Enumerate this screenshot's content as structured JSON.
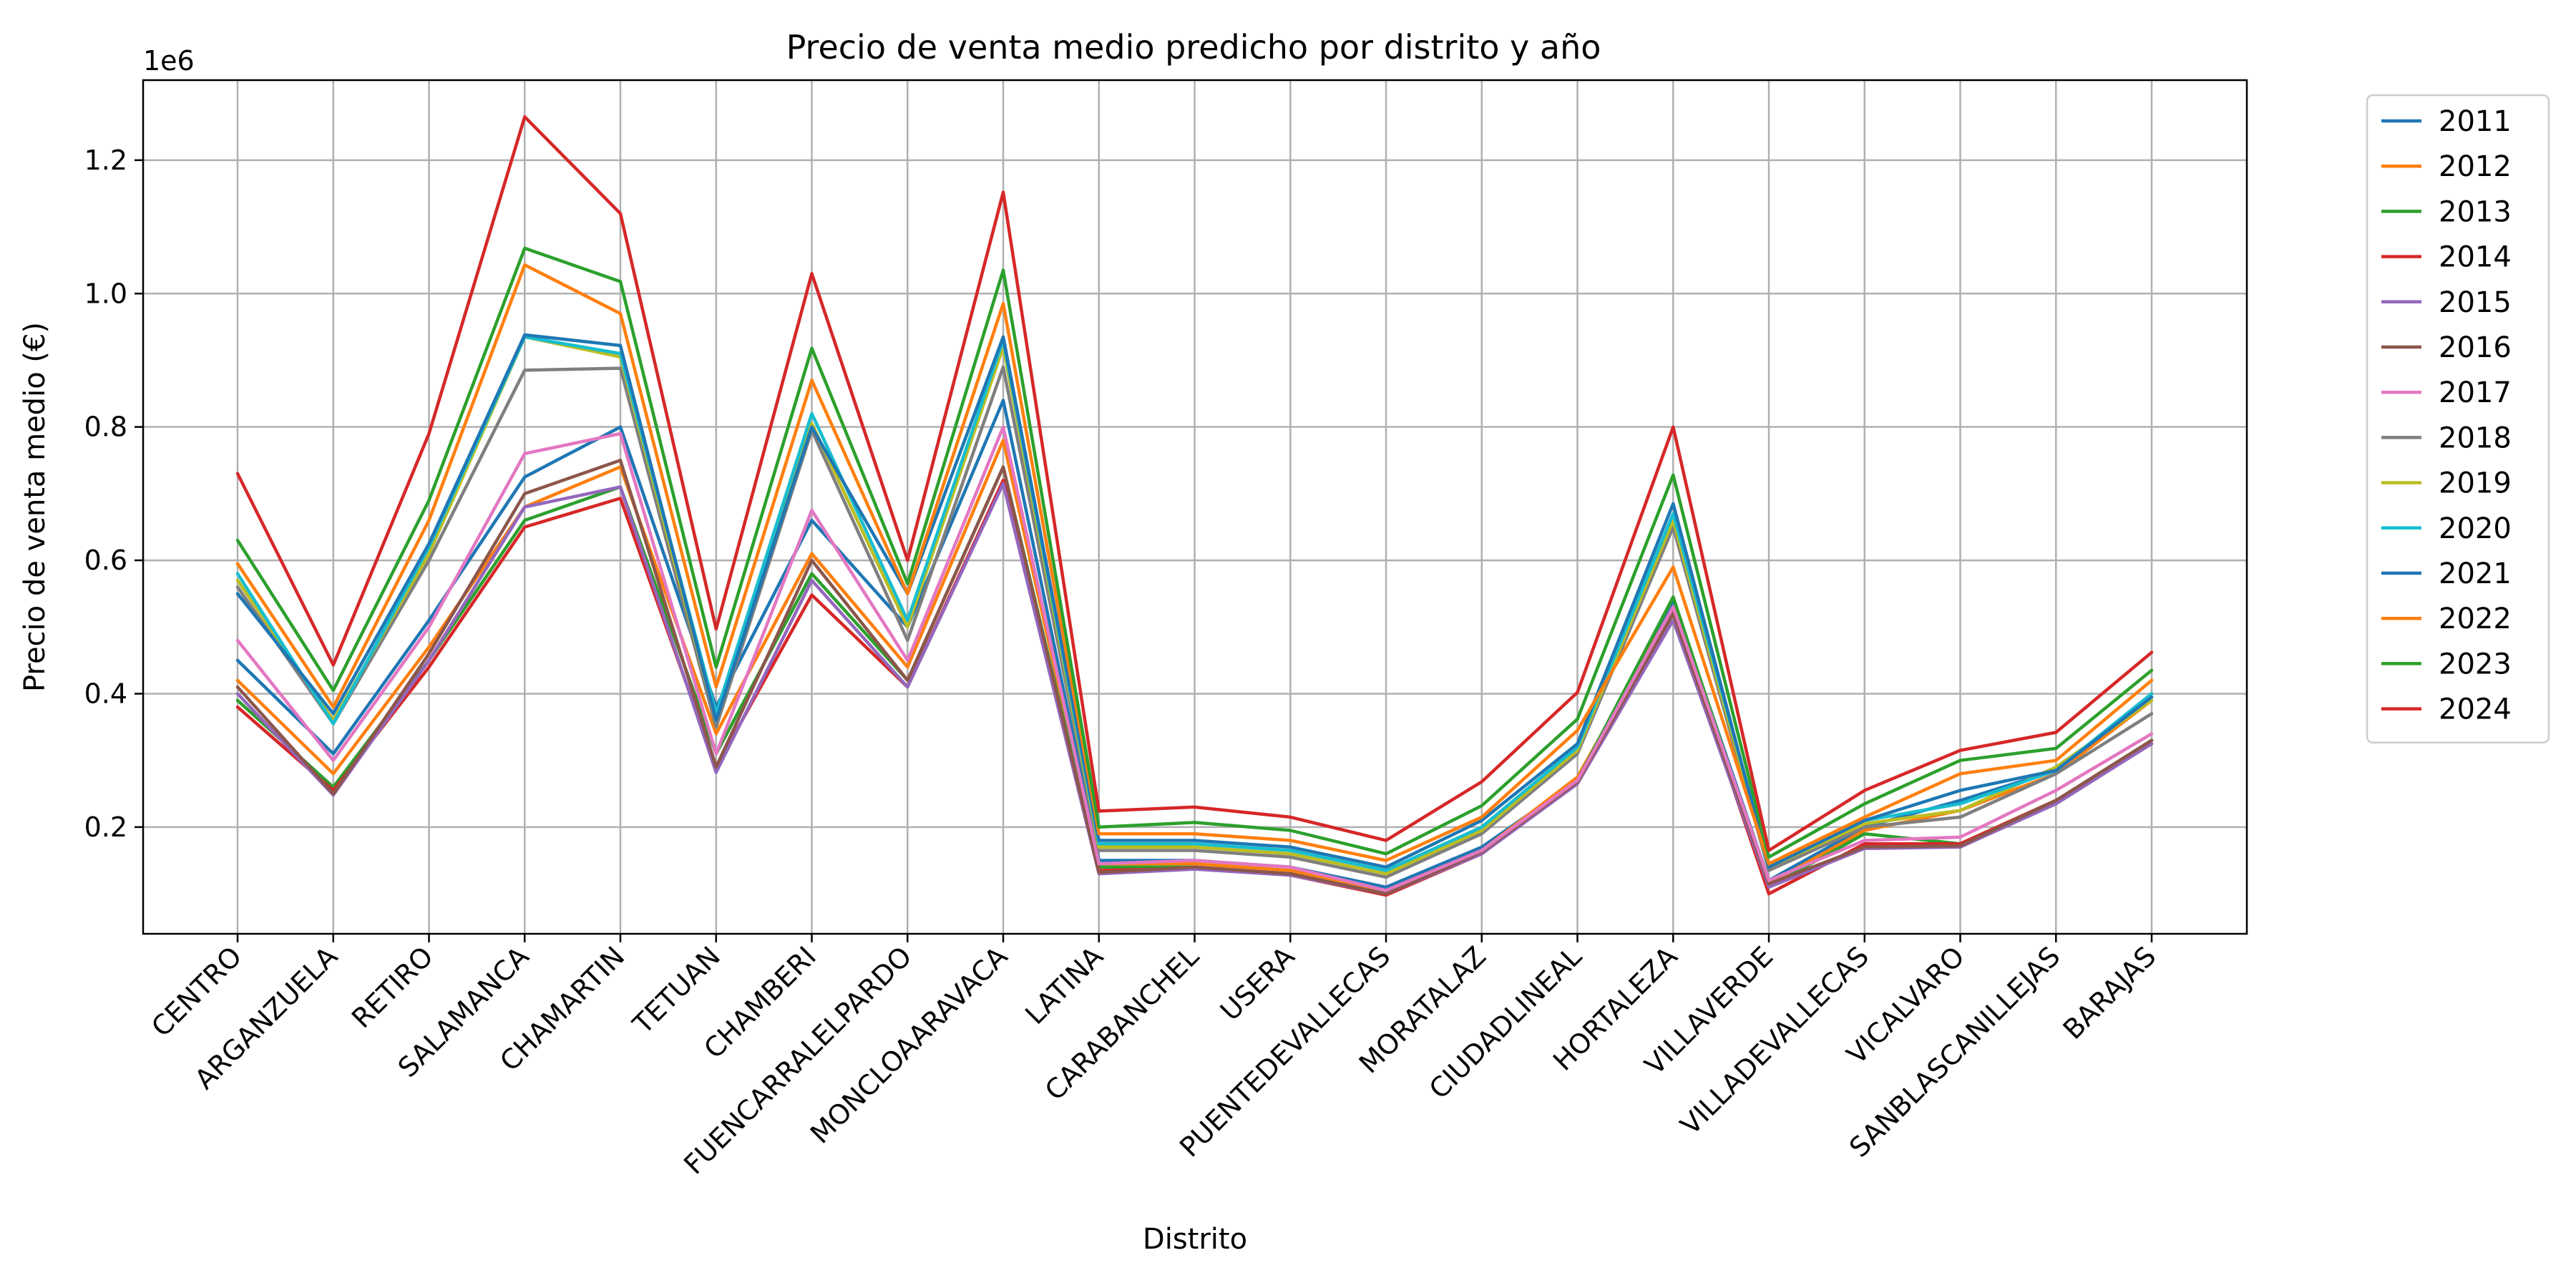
{
  "chart_data": {
    "type": "line",
    "title": "Precio de venta medio predicho por distrito y año",
    "xlabel": "Distrito",
    "ylabel": "Precio de venta medio (€)",
    "y_offset_label": "1e6",
    "y_scale": 1000000,
    "ylim": [
      40000,
      1320000
    ],
    "y_ticks": [
      200000,
      400000,
      600000,
      800000,
      1000000,
      1200000
    ],
    "y_tick_labels": [
      "0.2",
      "0.4",
      "0.6",
      "0.8",
      "1.0",
      "1.2"
    ],
    "grid": true,
    "legend_position": "outside-right",
    "categories": [
      "CENTRO",
      "ARGANZUELA",
      "RETIRO",
      "SALAMANCA",
      "CHAMARTIN",
      "TETUAN",
      "CHAMBERI",
      "FUENCARRALELPARDO",
      "MONCLOAARAVACA",
      "LATINA",
      "CARABANCHEL",
      "USERA",
      "PUENTEDEVALLECAS",
      "MORATALAZ",
      "CIUDADLINEAL",
      "HORTALEZA",
      "VILLAVERDE",
      "VILLADEVALLECAS",
      "VICALVARO",
      "SANBLASCANILLEJAS",
      "BARAJAS"
    ],
    "series": [
      {
        "name": "2011",
        "color": "#1f77b4",
        "values": [
          450000,
          310000,
          510000,
          725000,
          800000,
          380000,
          660000,
          500000,
          840000,
          150000,
          150000,
          140000,
          110000,
          170000,
          270000,
          540000,
          120000,
          200000,
          240000,
          285000,
          400000
        ]
      },
      {
        "name": "2012",
        "color": "#ff7f0e",
        "values": [
          420000,
          280000,
          470000,
          680000,
          740000,
          340000,
          610000,
          440000,
          780000,
          145000,
          145000,
          135000,
          105000,
          165000,
          275000,
          530000,
          115000,
          195000,
          225000,
          280000,
          390000
        ]
      },
      {
        "name": "2013",
        "color": "#2ca02c",
        "values": [
          390000,
          260000,
          450000,
          660000,
          710000,
          310000,
          580000,
          420000,
          740000,
          140000,
          140000,
          130000,
          100000,
          160000,
          270000,
          545000,
          110000,
          190000,
          175000,
          240000,
          330000
        ]
      },
      {
        "name": "2014",
        "color": "#d62728",
        "values": [
          380000,
          255000,
          440000,
          650000,
          693000,
          290000,
          548000,
          410000,
          720000,
          135000,
          138000,
          128000,
          98000,
          160000,
          268000,
          525000,
          100000,
          175000,
          175000,
          240000,
          325000
        ]
      },
      {
        "name": "2015",
        "color": "#9467bd",
        "values": [
          400000,
          248000,
          450000,
          680000,
          710000,
          282000,
          570000,
          410000,
          715000,
          130000,
          137000,
          128000,
          100000,
          160000,
          265000,
          510000,
          110000,
          168000,
          170000,
          235000,
          325000
        ]
      },
      {
        "name": "2016",
        "color": "#8c564b",
        "values": [
          410000,
          250000,
          460000,
          700000,
          750000,
          290000,
          600000,
          420000,
          740000,
          132000,
          140000,
          130000,
          100000,
          163000,
          268000,
          520000,
          115000,
          170000,
          172000,
          240000,
          330000
        ]
      },
      {
        "name": "2017",
        "color": "#e377c2",
        "values": [
          480000,
          300000,
          500000,
          760000,
          790000,
          310000,
          675000,
          450000,
          800000,
          145000,
          150000,
          140000,
          105000,
          165000,
          270000,
          530000,
          120000,
          180000,
          185000,
          255000,
          340000
        ]
      },
      {
        "name": "2018",
        "color": "#7f7f7f",
        "values": [
          560000,
          355000,
          600000,
          885000,
          888000,
          350000,
          795000,
          480000,
          890000,
          165000,
          165000,
          155000,
          125000,
          190000,
          310000,
          650000,
          135000,
          200000,
          215000,
          280000,
          370000
        ]
      },
      {
        "name": "2019",
        "color": "#bcbd22",
        "values": [
          570000,
          360000,
          610000,
          935000,
          905000,
          360000,
          805000,
          500000,
          920000,
          170000,
          170000,
          160000,
          130000,
          195000,
          315000,
          660000,
          140000,
          205000,
          225000,
          290000,
          390000
        ]
      },
      {
        "name": "2020",
        "color": "#17becf",
        "values": [
          580000,
          355000,
          620000,
          935000,
          910000,
          370000,
          820000,
          510000,
          930000,
          175000,
          175000,
          165000,
          135000,
          200000,
          320000,
          670000,
          145000,
          210000,
          235000,
          285000,
          400000
        ]
      },
      {
        "name": "2021",
        "color": "#1f77b4",
        "values": [
          550000,
          370000,
          625000,
          938000,
          922000,
          360000,
          800000,
          550000,
          935000,
          180000,
          180000,
          170000,
          140000,
          210000,
          325000,
          685000,
          140000,
          210000,
          255000,
          285000,
          395000
        ]
      },
      {
        "name": "2022",
        "color": "#ff7f0e",
        "values": [
          595000,
          380000,
          660000,
          1043000,
          970000,
          410000,
          870000,
          550000,
          985000,
          190000,
          190000,
          180000,
          150000,
          215000,
          345000,
          590000,
          145000,
          215000,
          280000,
          300000,
          420000
        ]
      },
      {
        "name": "2023",
        "color": "#2ca02c",
        "values": [
          630000,
          405000,
          690000,
          1068000,
          1018000,
          440000,
          918000,
          565000,
          1035000,
          200000,
          207000,
          195000,
          160000,
          232000,
          362000,
          728000,
          155000,
          235000,
          300000,
          318000,
          435000
        ]
      },
      {
        "name": "2024",
        "color": "#d62728",
        "values": [
          730000,
          443000,
          790000,
          1265000,
          1120000,
          497000,
          1030000,
          600000,
          1152000,
          224000,
          230000,
          215000,
          180000,
          268000,
          402000,
          800000,
          165000,
          255000,
          315000,
          342000,
          462000
        ]
      }
    ]
  }
}
